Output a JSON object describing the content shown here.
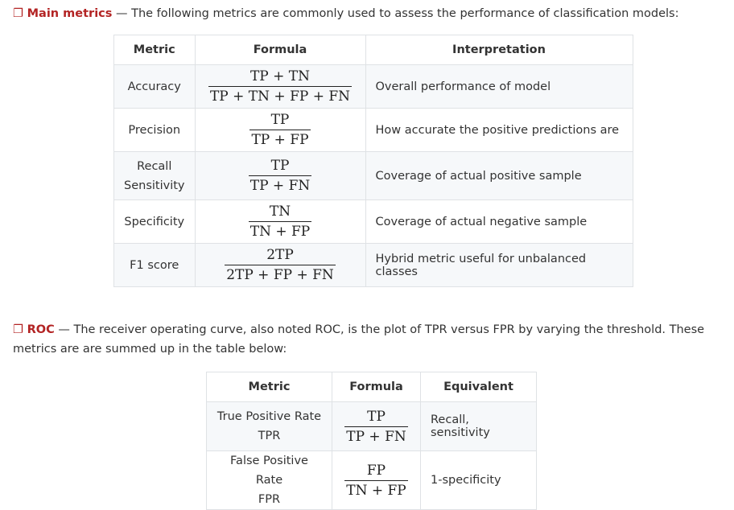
{
  "section1": {
    "box": "❐",
    "term": "Main metrics",
    "text": " — The following metrics are commonly used to assess the performance of classification models:"
  },
  "table1": {
    "headers": [
      "Metric",
      "Formula",
      "Interpretation"
    ],
    "rows": [
      {
        "metric": "Accuracy",
        "num": "TP + TN",
        "den": "TP + TN + FP + FN",
        "interp": "Overall performance of model"
      },
      {
        "metric": "Precision",
        "num": "TP",
        "den": "TP + FP",
        "interp": "How accurate the positive predictions are"
      },
      {
        "metric": "Recall",
        "metric2": "Sensitivity",
        "num": "TP",
        "den": "TP + FN",
        "interp": "Coverage of actual positive sample"
      },
      {
        "metric": "Specificity",
        "num": "TN",
        "den": "TN + FP",
        "interp": "Coverage of actual negative sample"
      },
      {
        "metric": "F1 score",
        "num": "2TP",
        "den": "2TP + FP + FN",
        "interp": "Hybrid metric useful for unbalanced classes"
      }
    ]
  },
  "section2": {
    "box": "❐",
    "term": "ROC",
    "text": " — The receiver operating curve, also noted ROC, is the plot of TPR versus FPR by varying the threshold. These metrics are are summed up in the table below:"
  },
  "table2": {
    "headers": [
      "Metric",
      "Formula",
      "Equivalent"
    ],
    "rows": [
      {
        "metric": "True Positive Rate",
        "metric2": "TPR",
        "num": "TP",
        "den": "TP + FN",
        "equiv": "Recall, sensitivity"
      },
      {
        "metric": "False Positive Rate",
        "metric2": "FPR",
        "num": "FP",
        "den": "TN + FP",
        "equiv": "1-specificity"
      }
    ]
  }
}
